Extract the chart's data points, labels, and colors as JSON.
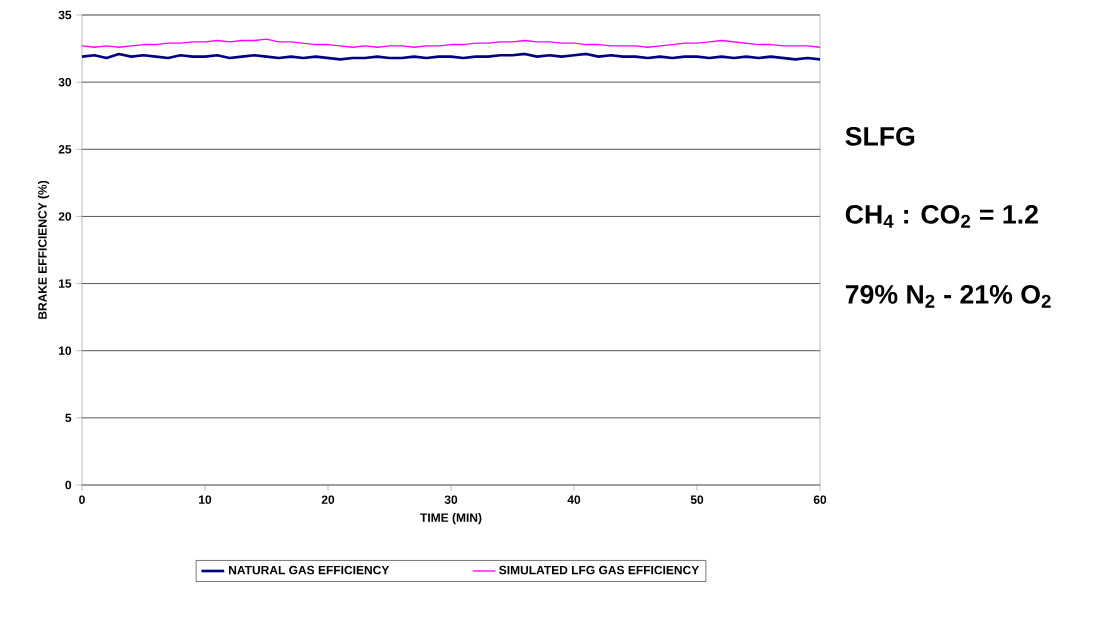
{
  "chart_data": {
    "type": "line",
    "xlabel": "TIME (MIN)",
    "ylabel": "BRAKE EFFICIENCY (%)",
    "x": [
      0,
      1,
      2,
      3,
      4,
      5,
      6,
      7,
      8,
      9,
      10,
      11,
      12,
      13,
      14,
      15,
      16,
      17,
      18,
      19,
      20,
      21,
      22,
      23,
      24,
      25,
      26,
      27,
      28,
      29,
      30,
      31,
      32,
      33,
      34,
      35,
      36,
      37,
      38,
      39,
      40,
      41,
      42,
      43,
      44,
      45,
      46,
      47,
      48,
      49,
      50,
      51,
      52,
      53,
      54,
      55,
      56,
      57,
      58,
      59,
      60
    ],
    "series": [
      {
        "name": "NATURAL GAS EFFICIENCY",
        "color": "#000080",
        "values": [
          31.9,
          32.0,
          31.8,
          32.1,
          31.9,
          32.0,
          31.9,
          31.8,
          32.0,
          31.9,
          31.9,
          32.0,
          31.8,
          31.9,
          32.0,
          31.9,
          31.8,
          31.9,
          31.8,
          31.9,
          31.8,
          31.7,
          31.8,
          31.8,
          31.9,
          31.8,
          31.8,
          31.9,
          31.8,
          31.9,
          31.9,
          31.8,
          31.9,
          31.9,
          32.0,
          32.0,
          32.1,
          31.9,
          32.0,
          31.9,
          32.0,
          32.1,
          31.9,
          32.0,
          31.9,
          31.9,
          31.8,
          31.9,
          31.8,
          31.9,
          31.9,
          31.8,
          31.9,
          31.8,
          31.9,
          31.8,
          31.9,
          31.8,
          31.7,
          31.8,
          31.7
        ]
      },
      {
        "name": "SIMULATED LFG GAS EFFICIENCY",
        "color": "#ff00ff",
        "values": [
          32.7,
          32.6,
          32.7,
          32.6,
          32.7,
          32.8,
          32.8,
          32.9,
          32.9,
          33.0,
          33.0,
          33.1,
          33.0,
          33.1,
          33.1,
          33.2,
          33.0,
          33.0,
          32.9,
          32.8,
          32.8,
          32.7,
          32.6,
          32.7,
          32.6,
          32.7,
          32.7,
          32.6,
          32.7,
          32.7,
          32.8,
          32.8,
          32.9,
          32.9,
          33.0,
          33.0,
          33.1,
          33.0,
          33.0,
          32.9,
          32.9,
          32.8,
          32.8,
          32.7,
          32.7,
          32.7,
          32.6,
          32.7,
          32.8,
          32.9,
          32.9,
          33.0,
          33.1,
          33.0,
          32.9,
          32.8,
          32.8,
          32.7,
          32.7,
          32.7,
          32.6
        ]
      }
    ],
    "xlim": [
      0,
      60
    ],
    "xticks": [
      0,
      10,
      20,
      30,
      40,
      50,
      60
    ],
    "ylim": [
      0,
      35
    ],
    "yticks": [
      0,
      5,
      10,
      15,
      20,
      25,
      30,
      35
    ],
    "grid": "y",
    "legend": "bottom",
    "marker": "none",
    "line_style": "solid",
    "annotations": [
      "SLFG",
      "CH$_{4}$ : CO$_{2}$ = 1.2",
      "79% N$_{2}$ - 21% O$_{2}$"
    ]
  }
}
